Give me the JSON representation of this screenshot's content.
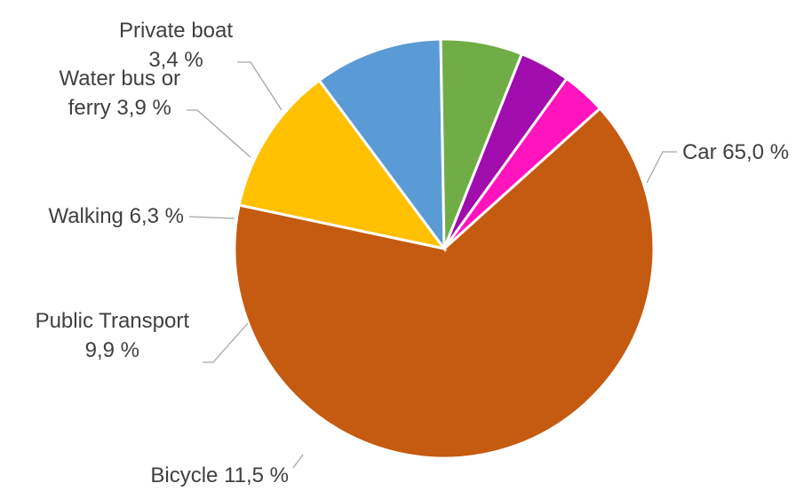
{
  "chart_data": {
    "type": "pie",
    "title": "",
    "start_angle_deg": -42,
    "direction": "clockwise",
    "slices": [
      {
        "name": "Car",
        "value": 65.0,
        "color": "#c55a11",
        "label_lines": [
          "Car  65,0 %"
        ]
      },
      {
        "name": "Bicycle",
        "value": 11.5,
        "color": "#ffc000",
        "label_lines": [
          "Bicycle 11,5 %"
        ]
      },
      {
        "name": "Public Transport",
        "value": 9.9,
        "color": "#5b9bd5",
        "label_lines": [
          "Public Transport",
          "9,9 %"
        ]
      },
      {
        "name": "Walking",
        "value": 6.3,
        "color": "#70ad47",
        "label_lines": [
          "Walking 6,3 %"
        ]
      },
      {
        "name": "Water bus or ferry",
        "value": 3.9,
        "color": "#a10cad",
        "label_lines": [
          "Water bus or",
          "ferry 3,9 %"
        ]
      },
      {
        "name": "Private boat",
        "value": 3.4,
        "color": "#ff14bd",
        "label_lines": [
          "Private boat",
          "3,4 %"
        ]
      }
    ]
  }
}
